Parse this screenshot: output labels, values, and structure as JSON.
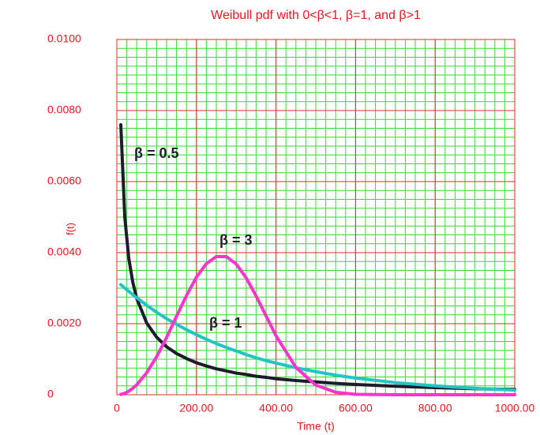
{
  "chart_data": {
    "type": "line",
    "title": "Weibull pdf with 0<β<1, β=1, and β>1",
    "x_label": "Time (t)",
    "y_label": "f(t)",
    "x": [
      10,
      20,
      30,
      40,
      50,
      75,
      100,
      125,
      150,
      175,
      200,
      225,
      250,
      275,
      300,
      325,
      350,
      375,
      400,
      450,
      500,
      550,
      600,
      700,
      800,
      900,
      1000
    ],
    "series": [
      {
        "name": "β = 0.5",
        "color": "#1c1c2c",
        "values": [
          0.0076,
          0.00499,
          0.00384,
          0.00317,
          0.00271,
          0.00202,
          0.00162,
          0.00135,
          0.00116,
          0.00102,
          0.0009,
          0.00081,
          0.00073,
          0.00067,
          0.00061,
          0.00057,
          0.00052,
          0.00049,
          0.00045,
          0.0004,
          0.00036,
          0.00032,
          0.00029,
          0.00024,
          0.0002,
          0.00017,
          0.00015
        ]
      },
      {
        "name": "β = 1",
        "color": "#22c4c4",
        "values": [
          0.0031,
          0.003,
          0.00291,
          0.00282,
          0.00273,
          0.00252,
          0.00232,
          0.00214,
          0.00198,
          0.00183,
          0.00169,
          0.00156,
          0.00144,
          0.00133,
          0.00123,
          0.00113,
          0.00104,
          0.00096,
          0.00089,
          0.00076,
          0.00065,
          0.00055,
          0.00047,
          0.00034,
          0.00025,
          0.00018,
          0.00013
        ]
      },
      {
        "name": "β = 3",
        "color": "#ff33cc",
        "values": [
          1e-05,
          4e-05,
          0.0001,
          0.00018,
          0.00028,
          0.00062,
          0.00107,
          0.00161,
          0.00221,
          0.00279,
          0.00331,
          0.00369,
          0.00389,
          0.00389,
          0.00368,
          0.00329,
          0.00278,
          0.00222,
          0.00166,
          0.00077,
          0.00027,
          7e-05,
          1e-05,
          0,
          0,
          0,
          0
        ]
      }
    ],
    "xlim": [
      0,
      1000
    ],
    "ylim": [
      0,
      0.01
    ],
    "xticks": [
      0,
      {
        "value": 200,
        "label": "200.00"
      },
      {
        "value": 400,
        "label": "400.00"
      },
      {
        "value": 600,
        "label": "600.00"
      },
      {
        "value": 800,
        "label": "800.00"
      },
      {
        "value": 1000,
        "label": "1000.00"
      }
    ],
    "yticks": [
      0,
      {
        "value": 0.002,
        "label": "0.0020"
      },
      {
        "value": 0.004,
        "label": "0.0040"
      },
      {
        "value": 0.006,
        "label": "0.0060"
      },
      {
        "value": 0.008,
        "label": "0.0080"
      },
      {
        "value": 0.01,
        "label": "0.0100"
      }
    ],
    "grid": true,
    "minor_grid_step_x": 25,
    "minor_grid_step_y": 0.00025
  }
}
